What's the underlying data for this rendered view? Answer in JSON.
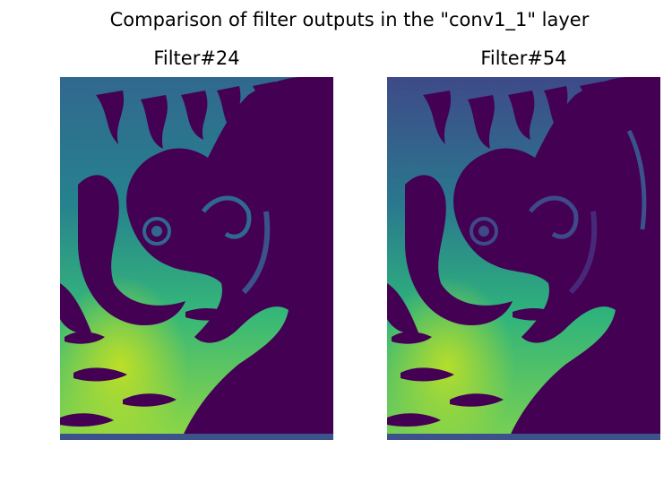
{
  "figure": {
    "suptitle": "Comparison of filter outputs in the \"conv1_1\" layer",
    "panels": [
      {
        "title": "Filter#24"
      },
      {
        "title": "Filter#54"
      }
    ],
    "colormap": {
      "name": "viridis",
      "dark": "#440154",
      "mid": "#26828e",
      "light": "#6ece58",
      "bright": "#bddf26"
    }
  }
}
